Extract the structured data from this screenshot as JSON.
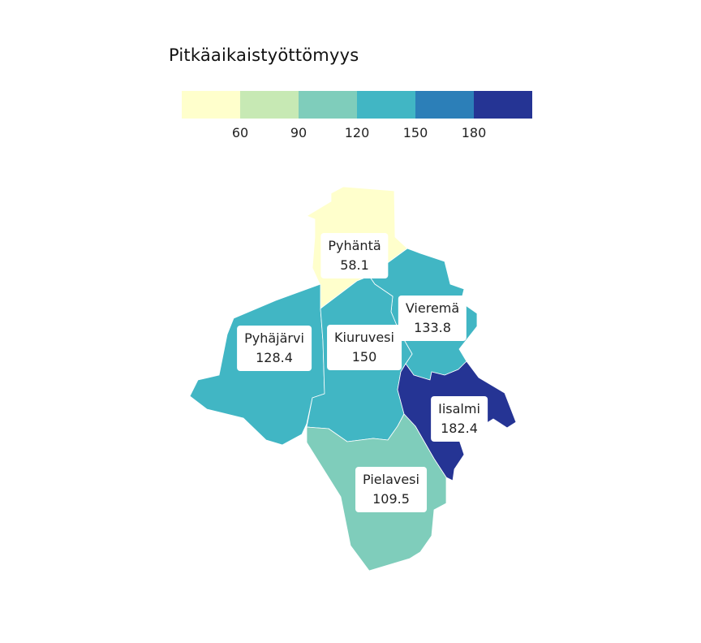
{
  "legend": {
    "title": "Pitkäaikaistyöttömyys",
    "colors": [
      "#ffffcc",
      "#c7e9b4",
      "#7fcdbb",
      "#41b6c4",
      "#2c7fb8",
      "#253494"
    ],
    "ticks": [
      "60",
      "90",
      "120",
      "150",
      "180"
    ]
  },
  "regions": [
    {
      "name": "Pyhäntä",
      "value": "58.1",
      "color": "#ffffcc"
    },
    {
      "name": "Vieremä",
      "value": "133.8",
      "color": "#41b6c4"
    },
    {
      "name": "Pyhäjärvi",
      "value": "128.4",
      "color": "#41b6c4"
    },
    {
      "name": "Kiuruvesi",
      "value": "150",
      "color": "#41b6c4"
    },
    {
      "name": "Iisalmi",
      "value": "182.4",
      "color": "#253494"
    },
    {
      "name": "Pielavesi",
      "value": "109.5",
      "color": "#7fcdbb"
    }
  ]
}
